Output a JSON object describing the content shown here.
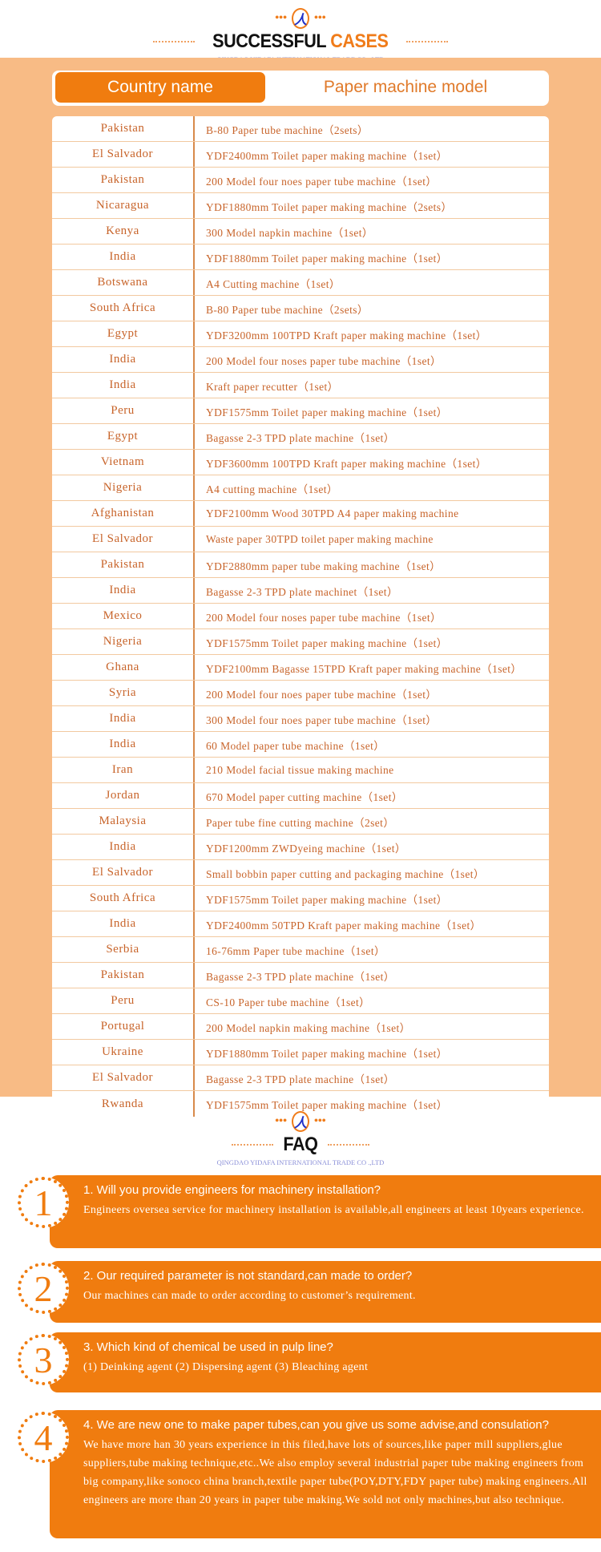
{
  "cases_header": {
    "title_dark": "SUCCESSFUL",
    "title_accent": "CASES",
    "subtitle": "QINGDAO YIDAFA INTERNATIONAL TRADE CO .,LTD"
  },
  "table": {
    "col1": "Country name",
    "col2": "Paper machine model",
    "rows": [
      [
        "Pakistan",
        "B-80 Paper tube machine（2sets）"
      ],
      [
        "El Salvador",
        "YDF2400mm Toilet paper making machine（1set）"
      ],
      [
        "Pakistan",
        "200 Model four noes paper tube machine（1set）"
      ],
      [
        "Nicaragua",
        "YDF1880mm Toilet paper making machine（2sets）"
      ],
      [
        "Kenya",
        "300 Model napkin machine（1set）"
      ],
      [
        "India",
        "YDF1880mm Toilet paper making machine（1set）"
      ],
      [
        "Botswana",
        "A4 Cutting machine（1set）"
      ],
      [
        "South Africa",
        "B-80 Paper tube machine（2sets）"
      ],
      [
        "Egypt",
        "YDF3200mm 100TPD Kraft paper making machine（1set）"
      ],
      [
        "India",
        "200 Model four noses paper tube machine（1set）"
      ],
      [
        "India",
        "Kraft paper recutter（1set）"
      ],
      [
        "Peru",
        "YDF1575mm Toilet paper making machine（1set）"
      ],
      [
        "Egypt",
        "Bagasse 2-3 TPD  plate machine（1set）"
      ],
      [
        "Vietnam",
        "YDF3600mm 100TPD Kraft paper making machine（1set）"
      ],
      [
        "Nigeria",
        "A4 cutting machine（1set）"
      ],
      [
        "Afghanistan",
        "YDF2100mm Wood 30TPD A4 paper making machine"
      ],
      [
        "El Salvador",
        "Waste paper 30TPD toilet paper making machine"
      ],
      [
        "Pakistan",
        "YDF2880mm paper tube making machine（1set）"
      ],
      [
        "India",
        "Bagasse 2-3 TPD  plate machinet（1set）"
      ],
      [
        "Mexico",
        "200 Model four noses paper tube machine（1set）"
      ],
      [
        "Nigeria",
        "YDF1575mm Toilet paper making machine（1set）"
      ],
      [
        "Ghana",
        "YDF2100mm Bagasse 15TPD Kraft paper making machine（1set）"
      ],
      [
        "Syria",
        "200 Model four noes paper tube machine（1set）"
      ],
      [
        "India",
        "300 Model four noes paper tube machine（1set）"
      ],
      [
        "India",
        "60 Model paper tube machine（1set）"
      ],
      [
        "Iran",
        "210 Model facial tissue making machine"
      ],
      [
        "Jordan",
        "670 Model paper cutting machine（1set）"
      ],
      [
        "Malaysia",
        "Paper tube fine cutting machine（2set）"
      ],
      [
        "India",
        "YDF1200mm ZWDyeing machine（1set）"
      ],
      [
        "El Salvador",
        "Small bobbin paper cutting and packaging machine（1set）"
      ],
      [
        "South Africa",
        "YDF1575mm Toilet paper making machine（1set）"
      ],
      [
        "India",
        "YDF2400mm 50TPD Kraft paper making machine（1set）"
      ],
      [
        "Serbia",
        "16-76mm Paper tube machine（1set）"
      ],
      [
        "Pakistan",
        "Bagasse 2-3 TPD plate machine（1set）"
      ],
      [
        "Peru",
        "CS-10 Paper tube machine（1set）"
      ],
      [
        "Portugal",
        "200 Model napkin making machine（1set）"
      ],
      [
        "Ukraine",
        "YDF1880mm Toilet paper making machine（1set）"
      ],
      [
        "El Salvador",
        "Bagasse 2-3 TPD  plate machine（1set）"
      ],
      [
        "Rwanda",
        "YDF1575mm Toilet paper making machine（1set）"
      ]
    ]
  },
  "faq_header": {
    "title": "FAQ",
    "subtitle": "QINGDAO YIDAFA INTERNATIONAL TRADE CO .,LTD"
  },
  "faq": [
    {
      "num": "1",
      "q": "1. Will you provide engineers for machinery installation?",
      "a": "Engineers oversea service for machinery installation is available,all engineers at least 10years experience."
    },
    {
      "num": "2",
      "q": "2. Our required parameter is not standard,can made to order?",
      "a": "Our machines can made to order according to customer’s requirement."
    },
    {
      "num": "3",
      "q": "3. Which kind of chemical be used in pulp line?",
      "a": "(1) Deinking agent    (2) Dispersing agent    (3) Bleaching agent"
    },
    {
      "num": "4",
      "q": "4. We are new one to make paper tubes,can you give us some advise,and consulation?",
      "a": "We have more han 30 years experience in this filed,have lots of sources,like paper mill suppliers,glue suppliers,tube making technique,etc..We also employ several industrial paper tube making engineers from big company,like sonoco china branch,textile paper tube(POY,DTY,FDY paper tube) making engineers.All engineers are more than 20 years in paper tube making.We sold not only machines,but also technique."
    }
  ],
  "colors": {
    "accent": "#f07c0f",
    "peach": "#f8bb85",
    "table_text": "#c8642a"
  }
}
